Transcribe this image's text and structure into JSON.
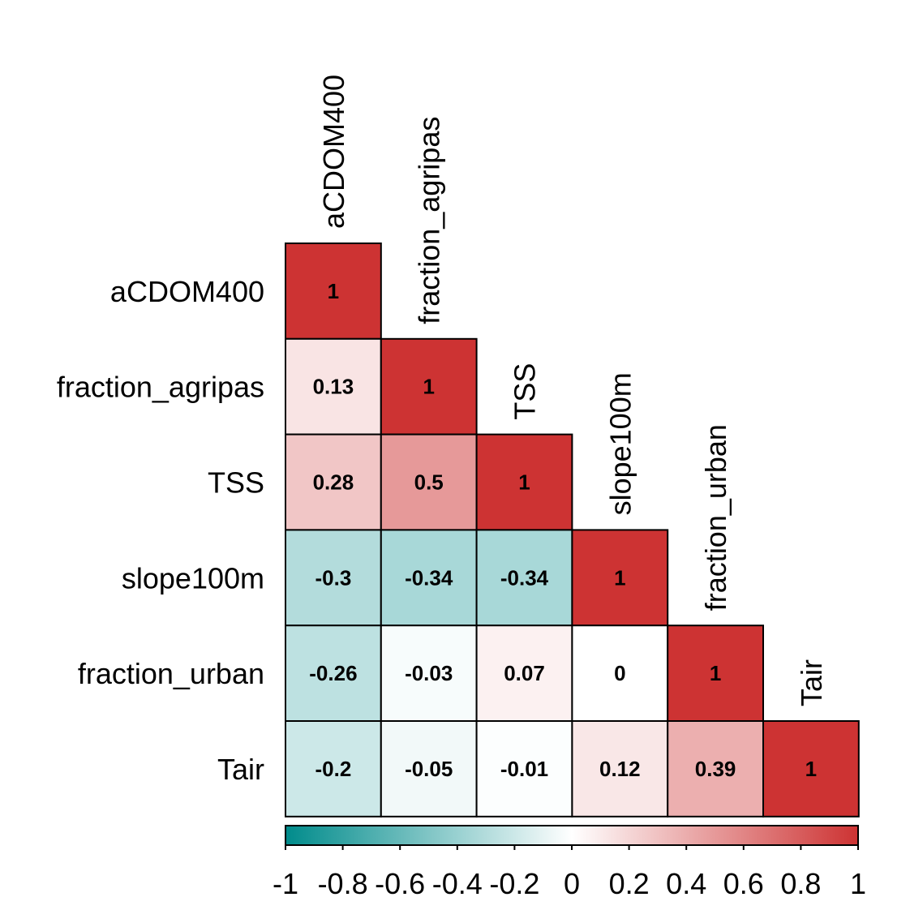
{
  "chart_data": {
    "type": "heatmap",
    "subtype": "correlation-lower-triangle",
    "variables": [
      "aCDOM400",
      "fraction_agripas",
      "TSS",
      "slope100m",
      "fraction_urban",
      "Tair"
    ],
    "matrix": [
      [
        1,
        null,
        null,
        null,
        null,
        null
      ],
      [
        0.13,
        1,
        null,
        null,
        null,
        null
      ],
      [
        0.28,
        0.5,
        1,
        null,
        null,
        null
      ],
      [
        -0.3,
        -0.34,
        -0.34,
        1,
        null,
        null
      ],
      [
        -0.26,
        -0.03,
        0.07,
        0,
        1,
        null
      ],
      [
        -0.2,
        -0.05,
        -0.01,
        0.12,
        0.39,
        1
      ]
    ],
    "cell_labels": [
      [
        "1",
        null,
        null,
        null,
        null,
        null
      ],
      [
        "0.13",
        "1",
        null,
        null,
        null,
        null
      ],
      [
        "0.28",
        "0.5",
        "1",
        null,
        null,
        null
      ],
      [
        "-0.3",
        "-0.34",
        "-0.34",
        "1",
        null,
        null
      ],
      [
        "-0.26",
        "-0.03",
        "0.07",
        "0",
        "1",
        null
      ],
      [
        "-0.2",
        "-0.05",
        "-0.01",
        "0.12",
        "0.39",
        "1"
      ]
    ],
    "colorbar": {
      "range": [
        -1,
        1
      ],
      "ticks": [
        -1,
        -0.8,
        -0.6,
        -0.4,
        -0.2,
        0,
        0.2,
        0.4,
        0.6,
        0.8,
        1
      ],
      "tick_labels": [
        "-1",
        "-0.8",
        "-0.6",
        "-0.4",
        "-0.2",
        "0",
        "0.2",
        "0.4",
        "0.6",
        "0.8",
        "1"
      ],
      "orientation": "horizontal",
      "placement": "bottom"
    },
    "colors": {
      "low": "#008B8B",
      "mid": "#FFFFFF",
      "high": "#CD3333"
    }
  }
}
